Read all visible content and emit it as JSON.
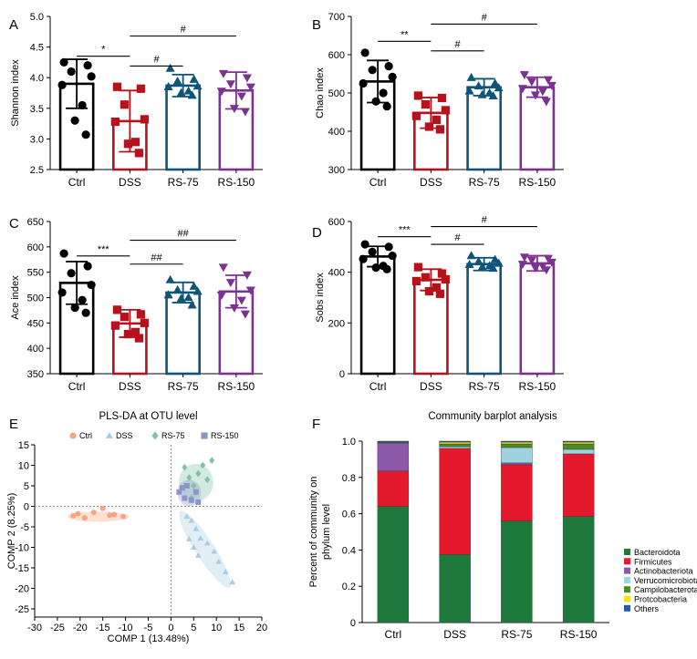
{
  "chart_data": [
    {
      "id": "A",
      "type": "bar",
      "letter": "A",
      "ylabel": "Shannon index",
      "categories": [
        "Ctrl",
        "DSS",
        "RS-75",
        "RS-150"
      ],
      "ylim": [
        2.5,
        5.0
      ],
      "yticks": [
        "2.5",
        "3.0",
        "3.5",
        "4.0",
        "4.5",
        "5.0"
      ],
      "ytick_values": [
        2.5,
        3.0,
        3.5,
        4.0,
        4.5,
        5.0
      ],
      "means": [
        3.9,
        3.29,
        3.87,
        3.79
      ],
      "sd": [
        0.4,
        0.5,
        0.18,
        0.3
      ],
      "points": [
        [
          4.25,
          4.2,
          4.1,
          4.02,
          3.88,
          3.55,
          3.3,
          3.07
        ],
        [
          3.85,
          3.82,
          3.56,
          3.32,
          3.28,
          2.95,
          2.92,
          2.77
        ],
        [
          4.15,
          3.97,
          3.94,
          3.86,
          3.85,
          3.78,
          3.75,
          3.71
        ],
        [
          4.07,
          4.0,
          3.9,
          3.85,
          3.78,
          3.7,
          3.5,
          3.45
        ]
      ],
      "significance": [
        {
          "from": 0,
          "to": 1,
          "label": "*",
          "y": 4.35
        },
        {
          "from": 1,
          "to": 2,
          "label": "#",
          "y": 4.19
        },
        {
          "from": 1,
          "to": 3,
          "label": "#",
          "y": 4.68
        }
      ]
    },
    {
      "id": "B",
      "type": "bar",
      "letter": "B",
      "ylabel": "Chao index",
      "categories": [
        "Ctrl",
        "DSS",
        "RS-75",
        "RS-150"
      ],
      "ylim": [
        300,
        700
      ],
      "yticks": [
        "300",
        "400",
        "500",
        "600",
        "700"
      ],
      "ytick_values": [
        300,
        400,
        500,
        600,
        700
      ],
      "means": [
        530,
        448,
        515,
        515
      ],
      "sd": [
        55,
        40,
        22,
        26
      ],
      "points": [
        [
          605,
          570,
          560,
          542,
          525,
          500,
          478,
          465
        ],
        [
          493,
          487,
          470,
          455,
          440,
          430,
          412,
          405
        ],
        [
          540,
          525,
          518,
          513,
          505,
          500,
          495,
          492
        ],
        [
          548,
          535,
          530,
          520,
          512,
          505,
          495,
          478
        ]
      ],
      "significance": [
        {
          "from": 0,
          "to": 1,
          "label": "**",
          "y": 635
        },
        {
          "from": 1,
          "to": 2,
          "label": "#",
          "y": 610
        },
        {
          "from": 1,
          "to": 3,
          "label": "#",
          "y": 680
        }
      ]
    },
    {
      "id": "C",
      "type": "bar",
      "letter": "C",
      "ylabel": "Ace index",
      "categories": [
        "Ctrl",
        "DSS",
        "RS-75",
        "RS-150"
      ],
      "ylim": [
        350,
        650
      ],
      "yticks": [
        "350",
        "400",
        "450",
        "500",
        "550",
        "600",
        "650"
      ],
      "ytick_values": [
        350,
        400,
        450,
        500,
        550,
        600,
        650
      ],
      "means": [
        529,
        449,
        510,
        512
      ],
      "sd": [
        42,
        27,
        20,
        32
      ],
      "points": [
        [
          587,
          562,
          548,
          525,
          510,
          495,
          480,
          470
        ],
        [
          476,
          467,
          462,
          450,
          445,
          432,
          428,
          420
        ],
        [
          535,
          522,
          515,
          512,
          505,
          500,
          498,
          485
        ],
        [
          560,
          545,
          530,
          515,
          505,
          495,
          480,
          468
        ]
      ],
      "significance": [
        {
          "from": 0,
          "to": 1,
          "label": "***",
          "y": 582
        },
        {
          "from": 1,
          "to": 2,
          "label": "##",
          "y": 566
        },
        {
          "from": 1,
          "to": 3,
          "label": "##",
          "y": 613
        }
      ]
    },
    {
      "id": "D",
      "type": "bar",
      "letter": "D",
      "ylabel": "Sobs index",
      "categories": [
        "Ctrl",
        "DSS",
        "RS-75",
        "RS-150"
      ],
      "ylim": [
        0,
        600
      ],
      "yticks": [
        "0",
        "200",
        "400",
        "600"
      ],
      "ytick_values": [
        0,
        200,
        400,
        600
      ],
      "means": [
        462,
        370,
        432,
        435
      ],
      "sd": [
        40,
        42,
        25,
        30
      ],
      "points": [
        [
          510,
          500,
          480,
          465,
          452,
          425,
          418,
          412
        ],
        [
          420,
          395,
          380,
          372,
          365,
          340,
          325,
          315
        ],
        [
          465,
          450,
          442,
          435,
          430,
          425,
          420,
          415
        ],
        [
          460,
          455,
          448,
          440,
          432,
          425,
          418,
          410
        ]
      ],
      "significance": [
        {
          "from": 0,
          "to": 1,
          "label": "***",
          "y": 540
        },
        {
          "from": 1,
          "to": 2,
          "label": "#",
          "y": 510
        },
        {
          "from": 1,
          "to": 3,
          "label": "#",
          "y": 580
        }
      ]
    },
    {
      "id": "E",
      "type": "scatter",
      "letter": "E",
      "title": "PLS-DA at OTU level",
      "xlabel": "COMP 1 (13.48%)",
      "ylabel": "COMP 2 (8.25%)",
      "xlim": [
        -30,
        20
      ],
      "ylim": [
        -27,
        15
      ],
      "xticks": [
        -30,
        -25,
        -20,
        -15,
        -10,
        -5,
        0,
        5,
        10,
        15,
        20
      ],
      "yticks": [
        -25,
        -20,
        -15,
        -10,
        -5,
        0,
        5,
        10,
        15
      ],
      "series": [
        {
          "name": "Ctrl",
          "color": "#f4a582",
          "marker": "circle",
          "ellipse": {
            "cx": -16,
            "cy": -2.5,
            "rx": 6.8,
            "ry": 1.25,
            "angle": 0
          },
          "x": [
            -21.5,
            -20.5,
            -19,
            -17,
            -15,
            -13.5,
            -12.5,
            -10.5
          ],
          "y": [
            -2.3,
            -1.8,
            -2.8,
            -1.5,
            -0.5,
            -2.2,
            -2.0,
            -2.5
          ]
        },
        {
          "name": "DSS",
          "color": "#a6cde3",
          "marker": "triangle",
          "ellipse": {
            "cx": 7.5,
            "cy": -10.5,
            "rx": 10,
            "ry": 2.3,
            "angle": 57
          },
          "x": [
            3.5,
            4.5,
            5.5,
            6.5,
            8,
            9.5,
            10.5,
            12,
            13.5,
            4,
            5,
            6
          ],
          "y": [
            -2.5,
            -3.5,
            -5.5,
            -7.8,
            -9,
            -11,
            -13.5,
            -16,
            -18.5,
            -8,
            -10,
            -12
          ]
        },
        {
          "name": "RS-75",
          "color": "#7fc2a5",
          "marker": "diamond",
          "ellipse": {
            "cx": 5.5,
            "cy": 5.8,
            "rx": 3.8,
            "ry": 4.6,
            "angle": 0
          },
          "x": [
            3,
            4,
            5,
            6,
            7,
            8,
            9,
            4.5
          ],
          "y": [
            9.5,
            7,
            5,
            8,
            10,
            6.5,
            11.2,
            2
          ]
        },
        {
          "name": "RS-150",
          "color": "#8b96c8",
          "marker": "square",
          "ellipse": {
            "cx": 4,
            "cy": 3.3,
            "rx": 2.6,
            "ry": 3.2,
            "angle": 0
          },
          "x": [
            1.8,
            2.5,
            3,
            3.5,
            4.5,
            5.5,
            6
          ],
          "y": [
            3.5,
            4.5,
            2,
            5,
            1.5,
            3.5,
            1
          ]
        }
      ]
    },
    {
      "id": "F",
      "type": "stacked-bar",
      "letter": "F",
      "title": "Community barplot analysis",
      "ylabel_lines": [
        "Percent of community on",
        "phylum level"
      ],
      "categories": [
        "Ctrl",
        "DSS",
        "RS-75",
        "RS-150"
      ],
      "ylim": [
        0,
        1.0
      ],
      "yticks": [
        "0",
        "0.2",
        "0.4",
        "0.6",
        "0.8",
        "1.0"
      ],
      "ytick_values": [
        0,
        0.2,
        0.4,
        0.6,
        0.8,
        1.0
      ],
      "series": [
        {
          "name": "Bacteroidota",
          "color": "#1e7a3c",
          "values": [
            0.64,
            0.375,
            0.56,
            0.585
          ]
        },
        {
          "name": "Firmicutes",
          "color": "#e41a2c",
          "values": [
            0.195,
            0.585,
            0.31,
            0.345
          ]
        },
        {
          "name": "Actinobacteriota",
          "color": "#8c59a8",
          "values": [
            0.155,
            0.0,
            0.01,
            0.0
          ]
        },
        {
          "name": "Verrucomicrobiota",
          "color": "#9fd3e0",
          "values": [
            0.0,
            0.01,
            0.085,
            0.025
          ]
        },
        {
          "name": "Campilobacterota",
          "color": "#4c8a2a",
          "values": [
            0.005,
            0.015,
            0.02,
            0.03
          ]
        },
        {
          "name": "Protcobacteria",
          "color": "#f6e21a",
          "values": [
            0.0,
            0.01,
            0.01,
            0.01
          ]
        },
        {
          "name": "Others",
          "color": "#2858a8",
          "values": [
            0.005,
            0.005,
            0.005,
            0.005
          ]
        }
      ]
    }
  ],
  "group_colors": [
    "#000000",
    "#b5121b",
    "#0d5578",
    "#7b3291"
  ]
}
